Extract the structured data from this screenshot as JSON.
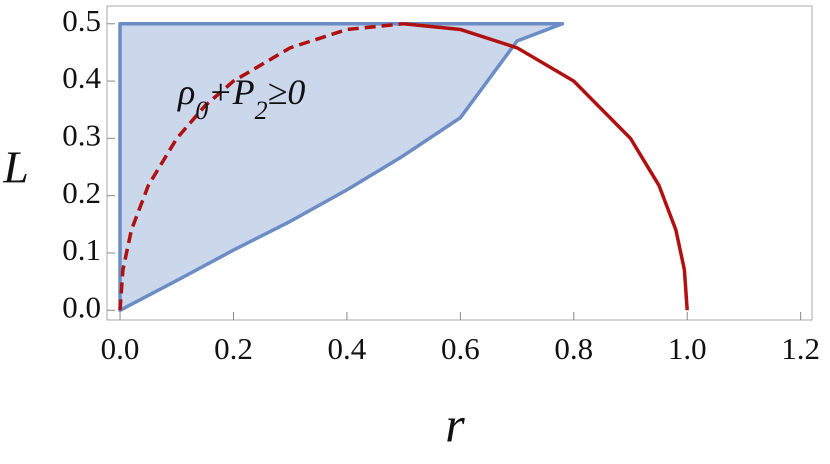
{
  "chart_data": {
    "type": "region",
    "xlabel": "r",
    "ylabel": "L",
    "annotation": [
      "ρ",
      "0",
      "+P",
      "2",
      "≥0"
    ],
    "xlim": [
      -0.023,
      1.22
    ],
    "ylim": [
      -0.017,
      0.531
    ],
    "xticks": [
      {
        "value": 0,
        "label": "0.0"
      },
      0.2,
      0.4,
      0.6,
      0.8,
      {
        "value": 1,
        "label": "1.0"
      },
      1.2
    ],
    "yticks": [
      {
        "value": 0,
        "label": "0.0"
      },
      0.1,
      0.2,
      0.3,
      0.4,
      0.5
    ],
    "region": {
      "color": "#6b8cc4",
      "x": [
        0,
        0,
        0.78,
        0.7,
        0.6,
        0.5,
        0.4,
        0.3,
        0.2,
        0.1,
        0
      ],
      "values": [
        0,
        0.5,
        0.5,
        0.47,
        0.336,
        0.27,
        0.21,
        0.155,
        0.105,
        0.052,
        0
      ]
    },
    "series": [
      {
        "color": "#b01010",
        "dashed": true,
        "x": [
          0,
          0.005,
          0.02,
          0.05,
          0.1,
          0.15,
          0.2,
          0.3,
          0.4,
          0.5
        ],
        "values": [
          0,
          0.0705,
          0.14,
          0.218,
          0.3,
          0.357,
          0.4,
          0.458,
          0.49,
          0.5
        ]
      },
      {
        "color": "#b01010",
        "dashed": false,
        "x": [
          0.5,
          0.6,
          0.7,
          0.8,
          0.9,
          0.95,
          0.98,
          0.995,
          1
        ],
        "values": [
          0.5,
          0.49,
          0.458,
          0.4,
          0.3,
          0.218,
          0.14,
          0.0705,
          0
        ]
      }
    ]
  }
}
